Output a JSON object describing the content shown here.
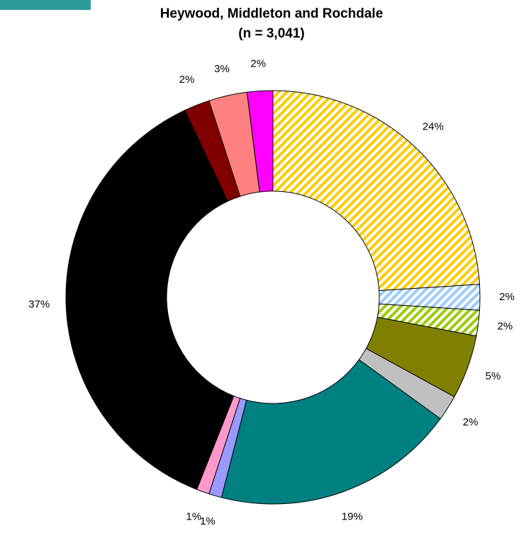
{
  "chart_data": {
    "type": "donut",
    "title": "Heywood, Middleton and Rochdale",
    "subtitle": "(n = 3,041)",
    "categories": [
      null,
      null,
      null,
      null,
      null,
      null,
      null,
      null,
      null,
      null,
      null,
      null
    ],
    "values": [
      24,
      2,
      2,
      5,
      2,
      19,
      1,
      1,
      37,
      2,
      3,
      2
    ],
    "value_labels": [
      "24%",
      "2%",
      "2%",
      "5%",
      "2%",
      "19%",
      "1%",
      "1%",
      "37%",
      "2%",
      "3%",
      "2%"
    ],
    "colors": [
      "#ffcc00",
      "#99ccff",
      "#99cc00",
      "#808000",
      "#c0c0c0",
      "#008080",
      "#9999ff",
      "#ff99cc",
      "#000000",
      "#800000",
      "#ff8080",
      "#ff00ff"
    ],
    "hatched": [
      true,
      true,
      true,
      false,
      false,
      false,
      false,
      false,
      false,
      false,
      false,
      false
    ]
  }
}
